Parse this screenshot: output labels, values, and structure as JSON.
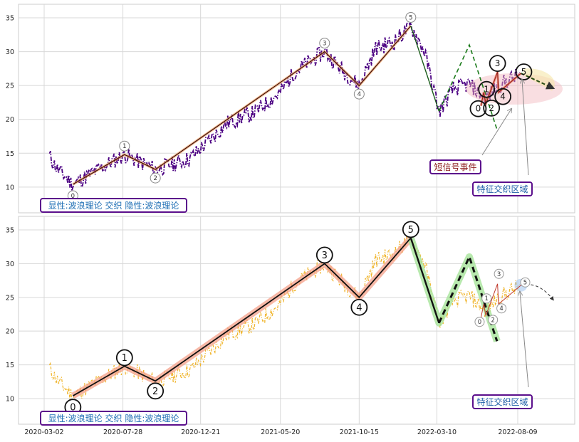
{
  "chart_data": [
    {
      "type": "line",
      "title": "",
      "y_ticks": [
        10,
        15,
        20,
        25,
        30,
        35
      ],
      "ylim": [
        6.2,
        37
      ],
      "grid": true,
      "price_color": "#4b0082",
      "wave_color": "#c0392b",
      "waves": [
        {
          "label": "0",
          "date": "2020-04-25",
          "value": 10.4
        },
        {
          "label": "1",
          "date": "2020-07-31",
          "value": 14.8
        },
        {
          "label": "2",
          "date": "2020-09-27",
          "value": 12.6
        },
        {
          "label": "3",
          "date": "2021-08-11",
          "value": 30.0
        },
        {
          "label": "4",
          "date": "2021-10-15",
          "value": 25.0
        },
        {
          "label": "5",
          "date": "2022-01-20",
          "value": 33.8
        }
      ],
      "dashed_path": [
        {
          "date": "2022-01-20",
          "value": 33.8
        },
        {
          "date": "2022-03-14",
          "value": 21.2
        },
        {
          "date": "2022-05-10",
          "value": 31.0
        },
        {
          "date": "2022-07-01",
          "value": 18.5
        }
      ],
      "small_waves": [
        {
          "label": "0",
          "date": "2022-06-01",
          "value": 22.0
        },
        {
          "label": "1",
          "date": "2022-06-06",
          "value": 24.0
        },
        {
          "label": "2",
          "date": "2022-06-10",
          "value": 22.3
        },
        {
          "label": "3",
          "date": "2022-07-02",
          "value": 27.0
        },
        {
          "label": "4",
          "date": "2022-07-04",
          "value": 24.0
        },
        {
          "label": "5",
          "date": "2022-08-15",
          "value": 26.8
        }
      ],
      "projection": [
        {
          "date": "2022-08-15",
          "value": 26.8
        },
        {
          "date": "2022-10-15",
          "value": 24.6
        }
      ],
      "annotations": [
        {
          "text": "短信号事件",
          "color": "#8b1a1a"
        },
        {
          "text": "特征交织区域",
          "color": "#1f5fa8"
        }
      ],
      "caption": "显性:波浪理论 交织 隐性:波浪理论"
    },
    {
      "type": "line",
      "title": "",
      "y_ticks": [
        10,
        15,
        20,
        25,
        30,
        35
      ],
      "ylim": [
        6.2,
        37
      ],
      "grid": true,
      "price_color": "#f0b429",
      "waves": [
        {
          "label": "0",
          "date": "2020-04-25",
          "value": 10.4
        },
        {
          "label": "1",
          "date": "2020-07-31",
          "value": 14.8
        },
        {
          "label": "2",
          "date": "2020-09-27",
          "value": 12.6
        },
        {
          "label": "3",
          "date": "2021-08-11",
          "value": 30.0
        },
        {
          "label": "4",
          "date": "2021-10-15",
          "value": 25.0
        },
        {
          "label": "5",
          "date": "2022-01-20",
          "value": 33.8
        }
      ],
      "dashed_path": [
        {
          "date": "2022-01-20",
          "value": 33.8
        },
        {
          "date": "2022-03-14",
          "value": 21.2
        },
        {
          "date": "2022-05-10",
          "value": 31.0
        },
        {
          "date": "2022-07-01",
          "value": 18.5
        }
      ],
      "small_waves": [
        {
          "label": "0",
          "date": "2022-06-01",
          "value": 22.0
        },
        {
          "label": "1",
          "date": "2022-06-06",
          "value": 24.0
        },
        {
          "label": "2",
          "date": "2022-06-10",
          "value": 22.3
        },
        {
          "label": "3",
          "date": "2022-07-02",
          "value": 27.0
        },
        {
          "label": "4",
          "date": "2022-07-04",
          "value": 24.0
        },
        {
          "label": "5",
          "date": "2022-08-15",
          "value": 26.8
        }
      ],
      "projection": [
        {
          "date": "2022-08-15",
          "value": 26.8
        },
        {
          "date": "2022-10-15",
          "value": 24.6
        }
      ],
      "annotations": [
        {
          "text": "特征交织区域",
          "color": "#1f5fa8"
        }
      ],
      "caption": "显性:波浪理论 交织 隐性:波浪理论"
    }
  ],
  "x_ticks": [
    "2020-03-02",
    "2020-07-28",
    "2020-12-21",
    "2021-05-20",
    "2021-10-15",
    "2022-03-10",
    "2022-08-09"
  ]
}
